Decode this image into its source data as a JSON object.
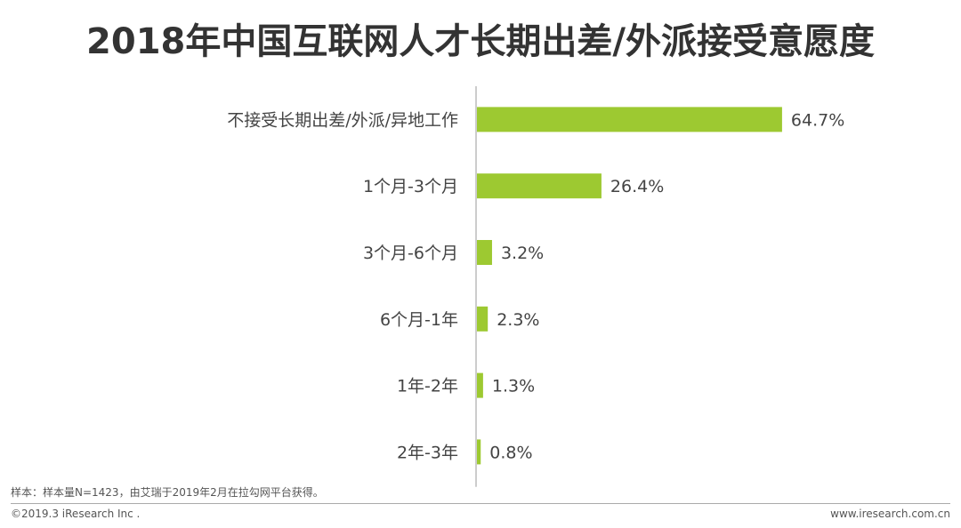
{
  "title": "2018年中国互联网人才长期出差/外派接受意愿度",
  "chart_data": {
    "type": "bar",
    "orientation": "horizontal",
    "categories": [
      "不接受长期出差/外派/异地工作",
      "1个月-3个月",
      "3个月-6个月",
      "6个月-1年",
      "1年-2年",
      "2年-3年"
    ],
    "values": [
      64.7,
      26.4,
      3.2,
      2.3,
      1.3,
      0.8
    ],
    "value_labels": [
      "64.7%",
      "26.4%",
      "3.2%",
      "2.3%",
      "1.3%",
      "0.8%"
    ],
    "xlim": [
      0,
      100
    ],
    "bar_color": "#9dc931",
    "axis_color": "#999999",
    "grid": false,
    "legend": "none"
  },
  "note": "样本：样本量N=1423，由艾瑞于2019年2月在拉勾网平台获得。",
  "footer": {
    "copyright": "©2019.3 iResearch Inc .",
    "website": "www.iresearch.com.cn"
  }
}
